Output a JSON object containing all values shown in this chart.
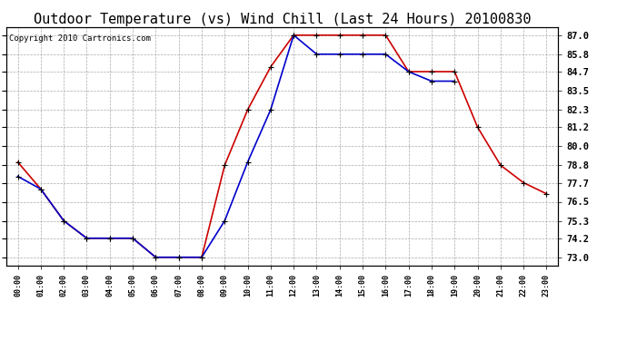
{
  "title": "Outdoor Temperature (vs) Wind Chill (Last 24 Hours) 20100830",
  "copyright": "Copyright 2010 Cartronics.com",
  "ylabel_right_ticks": [
    73.0,
    74.2,
    75.3,
    76.5,
    77.7,
    78.8,
    80.0,
    81.2,
    82.3,
    83.5,
    84.7,
    85.8,
    87.0
  ],
  "hours": [
    0,
    1,
    2,
    3,
    4,
    5,
    6,
    7,
    8,
    9,
    10,
    11,
    12,
    13,
    14,
    15,
    16,
    17,
    18,
    19,
    20,
    21,
    22,
    23
  ],
  "temp_red": [
    79.0,
    77.3,
    75.3,
    74.2,
    74.2,
    74.2,
    73.0,
    73.0,
    73.0,
    78.8,
    82.3,
    85.0,
    87.0,
    87.0,
    87.0,
    87.0,
    87.0,
    84.7,
    84.7,
    84.7,
    81.2,
    78.8,
    77.7,
    77.0
  ],
  "wind_blue": [
    78.1,
    77.3,
    75.3,
    74.2,
    74.2,
    74.2,
    73.0,
    73.0,
    73.0,
    75.3,
    79.0,
    82.3,
    87.0,
    85.8,
    85.8,
    85.8,
    85.8,
    84.7,
    84.1,
    84.1,
    null,
    null,
    null,
    null
  ],
  "ylim": [
    72.5,
    87.5
  ],
  "xlim": [
    -0.5,
    23.5
  ],
  "background_color": "#ffffff",
  "plot_bg_color": "#ffffff",
  "grid_color": "#aaaaaa",
  "red_color": "#cc0000",
  "blue_color": "#0000cc",
  "title_fontsize": 11,
  "copyright_fontsize": 6.5
}
